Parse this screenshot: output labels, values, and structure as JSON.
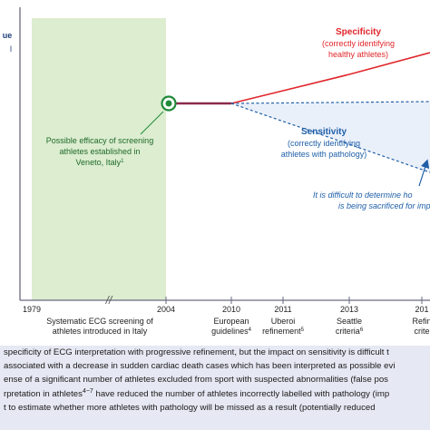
{
  "chart_data": {
    "type": "line",
    "ylabel_fragment": "ue",
    "axis_labels": [
      "1979",
      "2004",
      "2010",
      "2011",
      "2013",
      "201"
    ],
    "axis_sublabels": [
      [
        "Systematic ECG screening of",
        "athletes introduced in Italy"
      ],
      [],
      [
        "European",
        "guidelines"
      ],
      [
        "Uberoi",
        "refinement"
      ],
      [
        "Seattle",
        "criteria"
      ],
      [
        "Refin",
        "crite"
      ]
    ],
    "axis_sublabel_sups": [
      "",
      "",
      "4",
      "5",
      "6",
      ""
    ],
    "axis_break": "//",
    "shaded_region_label": [
      "Possible efficacy of screening",
      "athletes established in",
      "Veneto, Italy"
    ],
    "shaded_region_sup": "1",
    "specificity": {
      "name": "Specificity",
      "desc": [
        "(correctly identifying",
        "healthy athletes)"
      ],
      "color": "#e0262b"
    },
    "sensitivity": {
      "name": "Sensitivity",
      "desc": [
        "(correctly identifying",
        "athletes with pathology)"
      ],
      "color": "#1f5fa8"
    },
    "annotation": [
      "It is difficult to determine ho",
      "is being sacrificed for imp"
    ],
    "colors": {
      "shaded": "#dcedd0",
      "start_line": "#8a2b4e",
      "marker": "#1f8a3a"
    }
  },
  "caption_lines": [
    {
      "text": " specificity of ECG interpretation with progressive refinement, but the impact on sensitivity is difficult t",
      "sup": "",
      "rest": ""
    },
    {
      "text": "associated with a decrease in sudden cardiac death cases which has been interpreted as possible evi",
      "sup": "",
      "rest": ""
    },
    {
      "text": "ense of a significant number of athletes excluded from sport with suspected abnormalities (false pos",
      "sup": "",
      "rest": ""
    },
    {
      "text": "rpretation in athletes",
      "sup": "4−7",
      "rest": " have reduced the number of athletes incorrectly labelled with pathology (imp"
    },
    {
      "text": "t to estimate whether more athletes with pathology will be missed as a result (potentially reduced",
      "sup": "",
      "rest": ""
    }
  ]
}
